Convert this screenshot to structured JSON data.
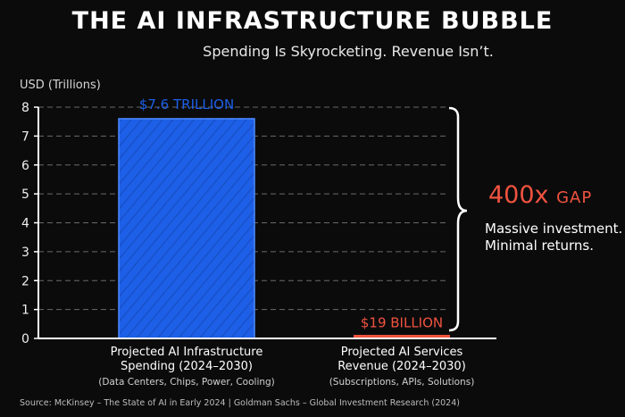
{
  "chart_data": {
    "type": "bar",
    "title": "THE AI INFRASTRUCTURE BUBBLE",
    "subtitle": "Spending Is Skyrocketing. Revenue Isn’t.",
    "ylabel": "USD (Trillions)",
    "ylim": [
      0,
      8
    ],
    "yticks": [
      0,
      1,
      2,
      3,
      4,
      5,
      6,
      7,
      8
    ],
    "grid": true,
    "categories": [
      {
        "line1": "Projected AI Infrastructure",
        "line2": "Spending (2024–2030)",
        "note": "(Data Centers, Chips, Power, Cooling)"
      },
      {
        "line1": "Projected AI Services",
        "line2": "Revenue (2024–2030)",
        "note": "(Subscriptions, APIs, Solutions)"
      }
    ],
    "values": [
      7.6,
      0.019
    ],
    "data_labels": [
      "$7.6 TRILLION",
      "$19 BILLION"
    ],
    "colors": [
      "#1d5fe6",
      "#f0533f"
    ],
    "annotation": {
      "gap_value": "400x",
      "gap_word": "GAP",
      "line1": "Massive investment.",
      "line2": "Minimal returns."
    },
    "source": "Source: McKinsey – The State of AI in Early 2024 | Goldman Sachs – Global Investment Research (2024)"
  }
}
